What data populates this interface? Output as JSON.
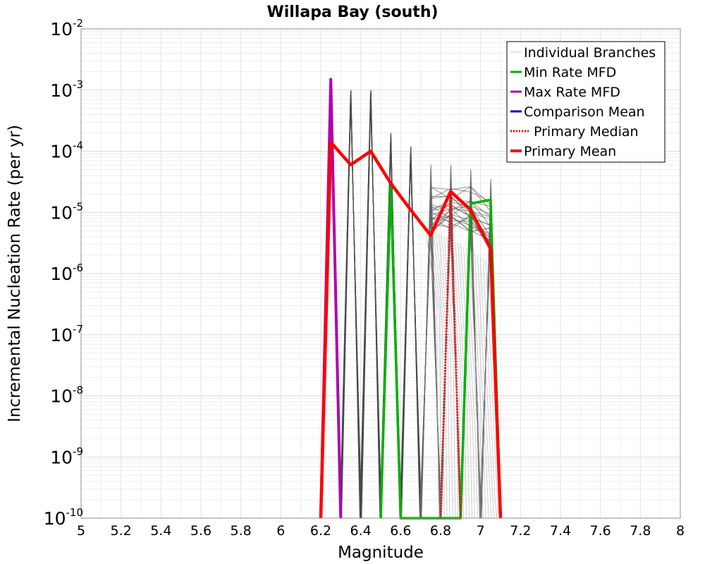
{
  "chart_data": {
    "type": "line",
    "title": "Willapa Bay (south)",
    "xlabel": "Magnitude",
    "ylabel": "Incremental Nucleation Rate (per yr)",
    "xlim": [
      5,
      8
    ],
    "ylim_log10": [
      -10,
      -2
    ],
    "y_scale": "log",
    "grid": true,
    "x_ticks": [
      "5",
      "5.2",
      "5.4",
      "5.6",
      "5.8",
      "6",
      "6.2",
      "6.4",
      "6.6",
      "6.8",
      "7",
      "7.2",
      "7.4",
      "7.6",
      "7.8",
      "8"
    ],
    "y_ticks": [
      {
        "base": "10",
        "exp": "-10"
      },
      {
        "base": "10",
        "exp": "-9"
      },
      {
        "base": "10",
        "exp": "-8"
      },
      {
        "base": "10",
        "exp": "-7"
      },
      {
        "base": "10",
        "exp": "-6"
      },
      {
        "base": "10",
        "exp": "-5"
      },
      {
        "base": "10",
        "exp": "-4"
      },
      {
        "base": "10",
        "exp": "-3"
      },
      {
        "base": "10",
        "exp": "-2"
      }
    ],
    "legend_position": "top-right",
    "legend": [
      {
        "label": "Individual Branches",
        "color": "#c8c8c8",
        "style": "thin"
      },
      {
        "label": "Min Rate MFD",
        "color": "#00b000",
        "style": "solid"
      },
      {
        "label": "Max Rate MFD",
        "color": "#b000b0",
        "style": "solid"
      },
      {
        "label": "Comparison Mean",
        "color": "#0000dd",
        "style": "solid"
      },
      {
        "label": "Primary Median",
        "color": "#ff0000",
        "style": "dotted"
      },
      {
        "label": "Primary Mean",
        "color": "#ff0000",
        "style": "thick"
      }
    ],
    "branch_peaks": [
      {
        "x": 6.25,
        "top": 0.0015,
        "bottom": 0.0012
      },
      {
        "x": 6.35,
        "top": 0.001,
        "bottom": 0.0008
      },
      {
        "x": 6.45,
        "top": 0.001,
        "bottom": 0.0008
      },
      {
        "x": 6.55,
        "top": 0.0002,
        "bottom": 0.00013
      },
      {
        "x": 6.65,
        "top": 0.00012,
        "bottom": 8e-05
      },
      {
        "x": 6.75,
        "top": 6e-05,
        "bottom": 4.5e-06
      },
      {
        "x": 6.85,
        "top": 6e-05,
        "bottom": 5e-06
      },
      {
        "x": 6.95,
        "top": 5e-05,
        "bottom": 5e-06
      },
      {
        "x": 7.05,
        "top": 3.5e-05,
        "bottom": 3e-06
      }
    ],
    "series": [
      {
        "name": "Primary Mean",
        "color": "#ff0000",
        "x": [
          6.2,
          6.25,
          6.35,
          6.45,
          6.55,
          6.65,
          6.75,
          6.85,
          6.95,
          7.05,
          7.1
        ],
        "y": [
          1e-10,
          0.00014,
          6e-05,
          0.0001,
          3e-05,
          1.1e-05,
          4.2e-06,
          2.2e-05,
          1.1e-05,
          2.6e-06,
          1e-10
        ]
      },
      {
        "name": "Max Rate MFD",
        "color": "#b000b0",
        "x": [
          6.2,
          6.25,
          6.3
        ],
        "y": [
          1e-10,
          0.0015,
          1e-10
        ]
      },
      {
        "name": "Min Rate MFD",
        "color": "#00b000",
        "x": [
          6.5,
          6.55,
          6.6,
          6.9,
          6.95,
          7.05,
          7.1
        ],
        "y": [
          1e-10,
          3e-05,
          1e-10,
          1e-10,
          1.4e-05,
          1.6e-05,
          1e-10
        ]
      },
      {
        "name": "Primary Median",
        "color": "#ff0000",
        "x": [
          6.8,
          6.85,
          6.9
        ],
        "y": [
          1e-10,
          2.2e-05,
          1e-10
        ]
      }
    ]
  }
}
